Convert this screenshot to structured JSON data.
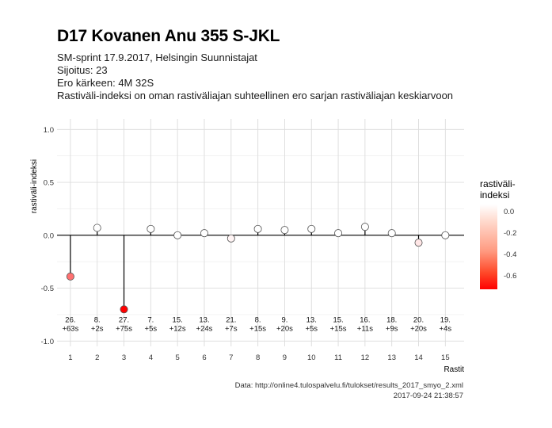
{
  "header": {
    "title": "D17 Kovanen Anu 355 S-JKL",
    "subtitle_lines": [
      "SM-sprint 17.9.2017, Helsingin Suunnistajat",
      "Sijoitus: 23",
      "Ero kärkeen: 4M 32S",
      "Rastiväli-indeksi on oman rastiväliajan suhteellinen ero sarjan rastiväliajan keskiarvoon"
    ]
  },
  "caption": {
    "source": "Data: http://online4.tulospalvelu.fi/tulokset/results_2017_smyo_2.xml",
    "timestamp": "2017-09-24 21:38:57"
  },
  "legend": {
    "title_line1": "rastiväli-",
    "title_line2": "indeksi",
    "labels": [
      "0.0",
      "-0.2",
      "-0.4",
      "-0.6"
    ]
  },
  "chart_data": {
    "type": "scatter",
    "xlabel": "Rastit",
    "ylabel": "rastiväli-indeksi",
    "ylim": [
      -1.05,
      1.1
    ],
    "xlim": [
      0.5,
      15.7
    ],
    "grid": true,
    "legend_position": "right",
    "y_ticks": [
      -1.0,
      -0.5,
      0.0,
      0.5,
      1.0
    ],
    "y_tick_labels": [
      "-1.0",
      "-0.5",
      "0.0",
      "0.5",
      "1.0"
    ],
    "x": [
      1,
      2,
      3,
      4,
      5,
      6,
      7,
      8,
      9,
      10,
      11,
      12,
      13,
      14,
      15
    ],
    "values": [
      -0.39,
      0.07,
      -0.7,
      0.06,
      0.0,
      0.02,
      -0.03,
      0.06,
      0.05,
      0.06,
      0.02,
      0.08,
      0.02,
      -0.07,
      0.0
    ],
    "annotations": [
      [
        "26.",
        "+63s"
      ],
      [
        "8.",
        "+2s"
      ],
      [
        "27.",
        "+75s"
      ],
      [
        "7.",
        "+5s"
      ],
      [
        "15.",
        "+12s"
      ],
      [
        "13.",
        "+24s"
      ],
      [
        "21.",
        "+7s"
      ],
      [
        "8.",
        "+15s"
      ],
      [
        "9.",
        "+20s"
      ],
      [
        "13.",
        "+5s"
      ],
      [
        "15.",
        "+15s"
      ],
      [
        "16.",
        "+11s"
      ],
      [
        "18.",
        "+9s"
      ],
      [
        "20.",
        "+20s"
      ],
      [
        "19.",
        "+4s"
      ]
    ],
    "colors": {
      "low": "#ff0000",
      "high": "#ffffff",
      "line": "#000000"
    }
  }
}
